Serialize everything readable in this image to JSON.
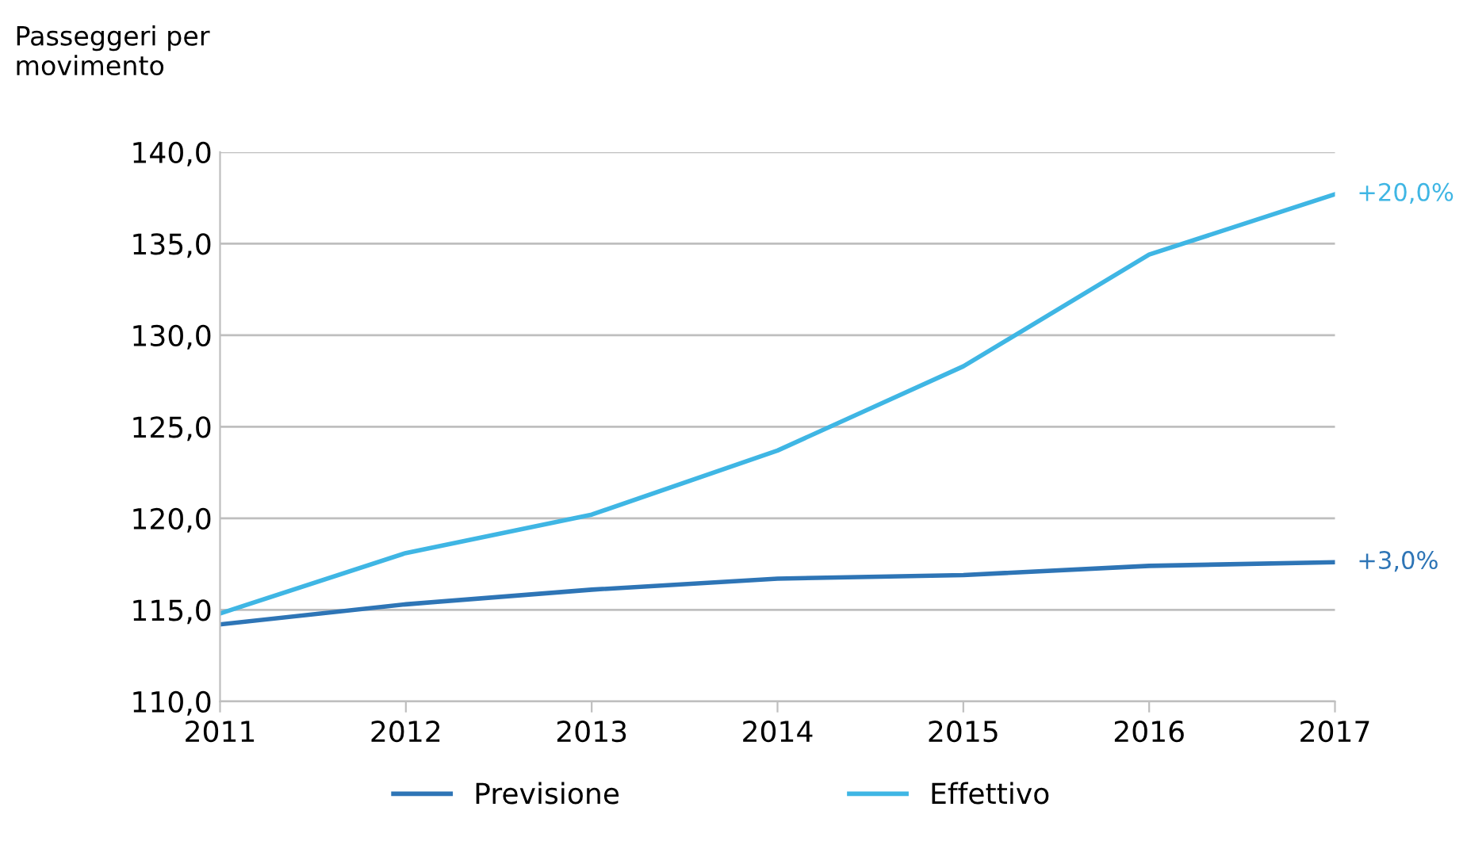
{
  "chart_data": {
    "type": "line",
    "ylabel": "Passeggeri per\nmovimento",
    "categories": [
      "2011",
      "2012",
      "2013",
      "2014",
      "2015",
      "2016",
      "2017"
    ],
    "series": [
      {
        "name": "Previsione",
        "color": "#2e75b6",
        "values": [
          114.2,
          115.3,
          116.1,
          116.7,
          116.9,
          117.4,
          117.6
        ]
      },
      {
        "name": "Effettivo",
        "color": "#3fb6e4",
        "values": [
          114.8,
          118.1,
          120.2,
          123.7,
          128.3,
          134.4,
          137.7
        ]
      }
    ],
    "annotations": [
      {
        "text": "+3,0%",
        "x": "2017",
        "y": 117.6
      },
      {
        "text": "+20,0%",
        "x": "2017",
        "y": 137.7
      }
    ],
    "ylim": [
      110,
      140
    ],
    "yticks": [
      {
        "value": 110,
        "label": "110,0"
      },
      {
        "value": 115,
        "label": "115,0"
      },
      {
        "value": 120,
        "label": "120,0"
      },
      {
        "value": 125,
        "label": "125,0"
      },
      {
        "value": 130,
        "label": "130,0"
      },
      {
        "value": 135,
        "label": "135,0"
      },
      {
        "value": 140,
        "label": "140,0"
      }
    ],
    "grid": "y",
    "legend": "bottom",
    "marker": "none",
    "line_style": "solid"
  }
}
